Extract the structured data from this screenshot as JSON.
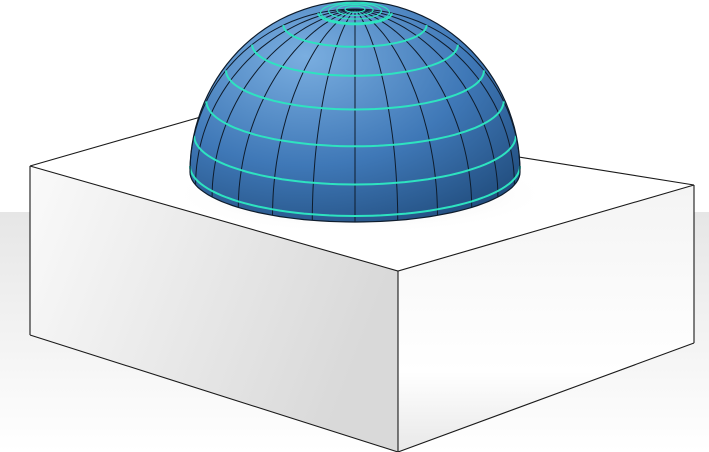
{
  "scene": {
    "background_color": "#ffffff",
    "ground_shade_color": "#e9e9e9",
    "box": {
      "top_face_color": "#ffffff",
      "left_face_color": "#ececec",
      "right_face_color": "#f2f2f2",
      "edge_color": "#1a1a1a"
    },
    "dome": {
      "fill_light": "#6fa2d6",
      "fill_mid": "#3f78b7",
      "fill_dark": "#234d7c",
      "meridian_color": "#0e1c2c",
      "parallel_color": "#2ee3c0",
      "meridian_count": 24,
      "parallel_count": 6
    }
  }
}
